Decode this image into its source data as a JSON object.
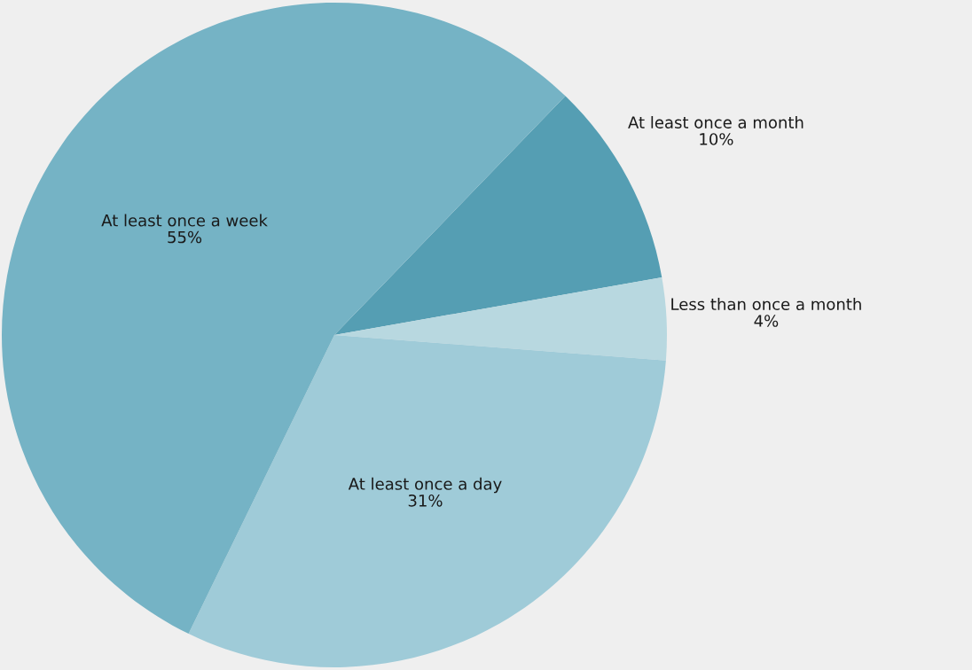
{
  "chart_data": {
    "type": "pie",
    "categories": [
      "At least once a month",
      "Less than once a month",
      "At least once a day",
      "At least once a week"
    ],
    "values": [
      10,
      4,
      31,
      55
    ],
    "value_labels": [
      "10%",
      "4%",
      "31%",
      "55%"
    ],
    "colors": [
      "#559eb3",
      "#b8d8e0",
      "#9fcbd8",
      "#75b3c5"
    ]
  }
}
